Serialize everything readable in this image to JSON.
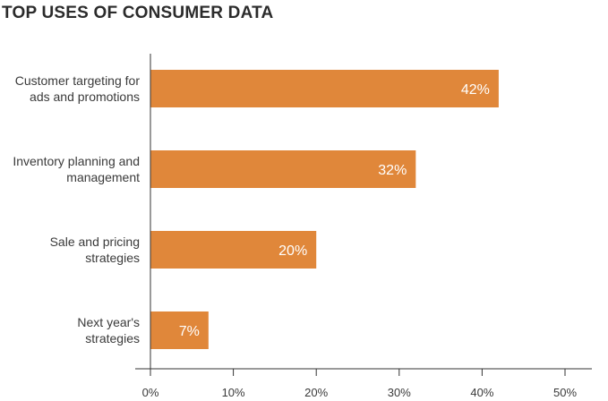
{
  "chart_data": {
    "type": "bar",
    "orientation": "horizontal",
    "title": "TOP USES OF CONSUMER DATA",
    "categories": [
      [
        "Customer targeting for",
        "ads and promotions"
      ],
      [
        "Inventory planning and",
        "management"
      ],
      [
        "Sale and pricing",
        "strategies"
      ],
      [
        "Next year's",
        "strategies"
      ]
    ],
    "values": [
      42,
      32,
      20,
      7
    ],
    "data_labels": [
      "42%",
      "32%",
      "20%",
      "7%"
    ],
    "xlabel": "",
    "ylabel": "",
    "xlim": [
      0,
      50
    ],
    "ticks": [
      0,
      10,
      20,
      30,
      40,
      50
    ],
    "tick_labels": [
      "0%",
      "10%",
      "20%",
      "30%",
      "40%",
      "50%"
    ],
    "grid": false,
    "legend": "none",
    "bar_color": "#e0873a",
    "axis_color": "#333333"
  }
}
